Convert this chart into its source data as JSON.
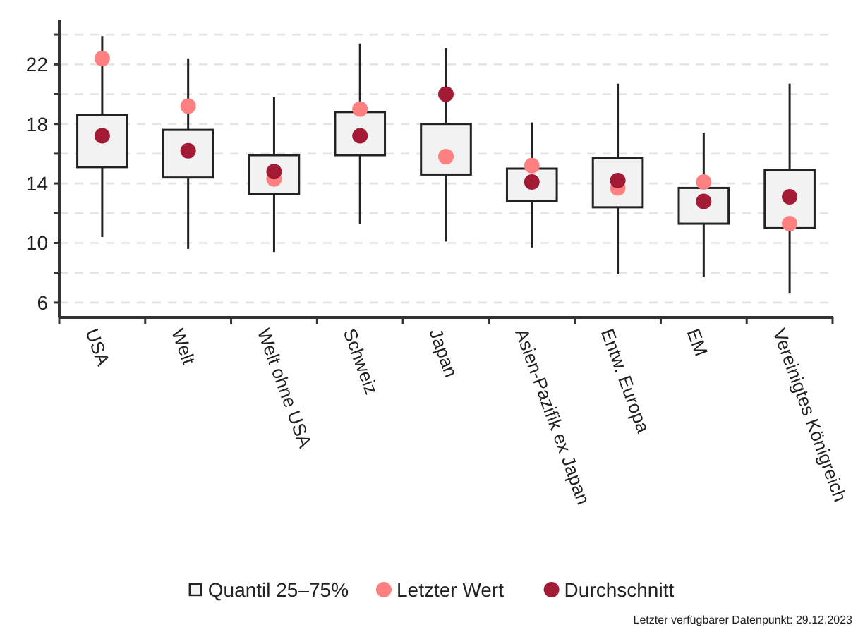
{
  "chart_data": {
    "type": "box",
    "categories": [
      "USA",
      "Welt",
      "Welt ohne USA",
      "Schweiz",
      "Japan",
      "Asien-Pazifik ex Japan",
      "Entw. Europa",
      "EM",
      "Vereinigtes Königreich"
    ],
    "ylim": [
      5,
      25
    ],
    "yticks": [
      6,
      {
        "value": 8,
        "label": null
      },
      10,
      {
        "value": 12,
        "label": null
      },
      14,
      {
        "value": 16,
        "label": null
      },
      18,
      {
        "value": 20,
        "label": null
      },
      22,
      {
        "value": 24,
        "label": null
      }
    ],
    "grid": "y",
    "legend": "bottom",
    "annotations": [
      "Letzter verfügbarer Datenpunkt: 29.12.2023"
    ],
    "series": [
      {
        "name": "Quantil 25–75%",
        "color": "#f2f2f2",
        "boxes": [
          {
            "low": 10.4,
            "q1": 15.1,
            "q3": 18.6,
            "high": 23.9
          },
          {
            "low": 9.6,
            "q1": 14.4,
            "q3": 17.6,
            "high": 22.4
          },
          {
            "low": 9.4,
            "q1": 13.3,
            "q3": 15.9,
            "high": 19.8
          },
          {
            "low": 11.3,
            "q1": 15.9,
            "q3": 18.8,
            "high": 23.4
          },
          {
            "low": 10.1,
            "q1": 14.6,
            "q3": 18.0,
            "high": 23.1
          },
          {
            "low": 9.7,
            "q1": 12.8,
            "q3": 15.0,
            "high": 18.1
          },
          {
            "low": 7.9,
            "q1": 12.4,
            "q3": 15.7,
            "high": 20.7
          },
          {
            "low": 7.7,
            "q1": 11.3,
            "q3": 13.7,
            "high": 17.4
          },
          {
            "low": 6.6,
            "q1": 11.0,
            "q3": 14.9,
            "high": 20.7
          }
        ]
      },
      {
        "name": "Letzter Wert",
        "type": "scatter",
        "color": "#ff8080",
        "marker": "circle",
        "x": [
          "USA",
          "Welt",
          "Welt ohne USA",
          "Schweiz",
          "Japan",
          "Asien-Pazifik ex Japan",
          "Entw. Europa",
          "EM",
          "Vereinigtes Königreich"
        ],
        "values": [
          22.4,
          19.2,
          14.3,
          19.0,
          15.8,
          15.2,
          13.7,
          14.1,
          11.3
        ]
      },
      {
        "name": "Durchschnitt",
        "type": "scatter",
        "color": "#a31a35",
        "marker": "circle",
        "x": [
          "USA",
          "Welt",
          "Welt ohne USA",
          "Schweiz",
          "Japan",
          "Asien-Pazifik ex Japan",
          "Entw. Europa",
          "EM",
          "Vereinigtes Königreich"
        ],
        "values": [
          17.2,
          16.2,
          14.8,
          17.2,
          20.0,
          14.1,
          14.2,
          12.8,
          13.1
        ]
      }
    ]
  }
}
